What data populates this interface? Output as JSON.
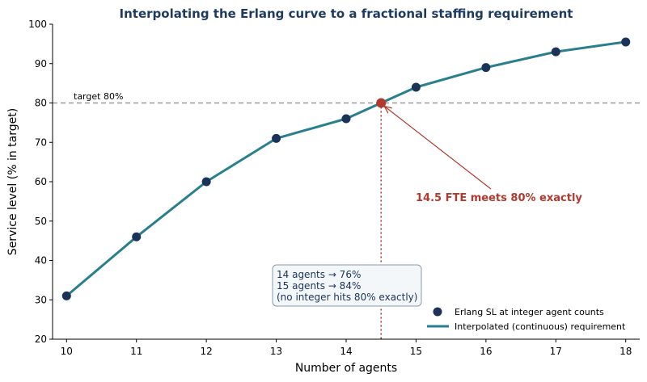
{
  "chart_data": {
    "type": "line",
    "title": "Interpolating the Erlang curve to a fractional staffing requirement",
    "xlabel": "Number of agents",
    "ylabel": "Service level (% in target)",
    "xlim": [
      9.8,
      18.2
    ],
    "ylim": [
      20,
      100
    ],
    "xticks": [
      10,
      11,
      12,
      13,
      14,
      15,
      16,
      17,
      18
    ],
    "yticks": [
      20,
      30,
      40,
      50,
      60,
      70,
      80,
      90,
      100
    ],
    "grid": false,
    "legend_position": "lower-right",
    "series": [
      {
        "name": "Erlang SL at integer agent counts",
        "kind": "scatter",
        "x": [
          10,
          11,
          12,
          13,
          14,
          15,
          16,
          17,
          18
        ],
        "y": [
          31,
          46,
          60,
          71,
          76,
          84,
          89,
          93,
          95.5
        ]
      },
      {
        "name": "Interpolated (continuous) requirement",
        "kind": "line",
        "x": [
          10,
          11,
          12,
          13,
          14,
          15,
          16,
          17,
          18
        ],
        "y": [
          31,
          46,
          60,
          71,
          76,
          84,
          89,
          93,
          95.5
        ]
      }
    ],
    "target_line": {
      "y": 80,
      "label": "target 80%"
    },
    "fractional_point": {
      "x": 14.5,
      "y": 80
    },
    "annotation": "14.5 FTE meets 80% exactly",
    "note_lines": [
      "14 agents → 76%",
      "15 agents → 84%",
      "(no integer hits 80% exactly)"
    ],
    "colors": {
      "title": "#1f3a5f",
      "line": "#2a7f8e",
      "marker": "#1b3358",
      "highlight": "#b03a2e",
      "target": "#999999",
      "note_bg": "#f3f7fa",
      "note_border": "#8a9aa8"
    }
  }
}
